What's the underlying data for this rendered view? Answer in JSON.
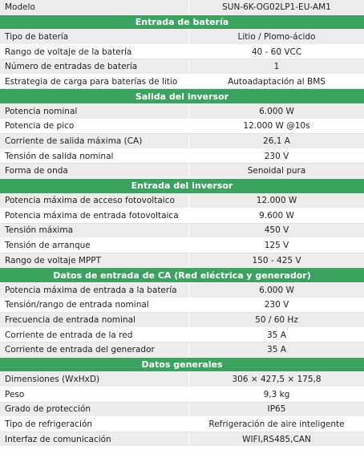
{
  "model": {
    "label": "Modelo",
    "value": "SUN-6K-OG02LP1-EU-AM1"
  },
  "sections": [
    {
      "title": "Entrada de batería",
      "rows": [
        [
          "Tipo de batería",
          "Litio / Plomo-ácido"
        ],
        [
          "Rango de voltaje de la batería",
          "40 - 60 VCC"
        ],
        [
          "Número de entradas de batería",
          "1"
        ],
        [
          "Estrategia de carga para baterías de litio",
          "Autoadaptación al BMS"
        ]
      ]
    },
    {
      "title": "Salida del inversor",
      "rows": [
        [
          "Potencia nominal",
          "6.000 W"
        ],
        [
          "Potencia de pico",
          "12.000 W @10s"
        ],
        [
          "Corriente de salida máxima (CA)",
          "26,1 A"
        ],
        [
          "Tensión de salida nominal",
          "230 V"
        ],
        [
          "Forma de onda",
          "Senoidal pura"
        ]
      ]
    },
    {
      "title": "Entrada del inversor",
      "rows": [
        [
          "Potencia máxima de acceso fotovoltaico",
          "12.000 W"
        ],
        [
          "Potencia máxima de entrada fotovoltaica",
          "9.600 W"
        ],
        [
          "Tensión máxima",
          "450 V"
        ],
        [
          "Tensión de arranque",
          "125 V"
        ],
        [
          "Rango de voltaje MPPT",
          "150 - 425 V"
        ]
      ]
    },
    {
      "title": "Datos de entrada de CA (Red eléctrica y generador)",
      "rows": [
        [
          "Potencia máxima de entrada a la batería",
          "6.000 W"
        ],
        [
          "Tensión/rango de entrada nominal",
          "230 V"
        ],
        [
          "Frecuencia de entrada nominal",
          "50 / 60 Hz"
        ],
        [
          "Corriente de entrada de la red",
          "35 A"
        ],
        [
          "Corriente de entrada del generador",
          "35 A"
        ]
      ]
    },
    {
      "title": "Datos generales",
      "rows": [
        [
          "Dimensiones (WxHxD)",
          "306 × 427,5 × 175,8"
        ],
        [
          "Peso",
          "9,3 kg"
        ],
        [
          "Grado de protección",
          "IP65"
        ],
        [
          "Tipo de refrigeración",
          "Refrigeración de aire inteligente"
        ],
        [
          "Interfaz de comunicación",
          "WIFI,RS485,CAN"
        ]
      ]
    }
  ]
}
